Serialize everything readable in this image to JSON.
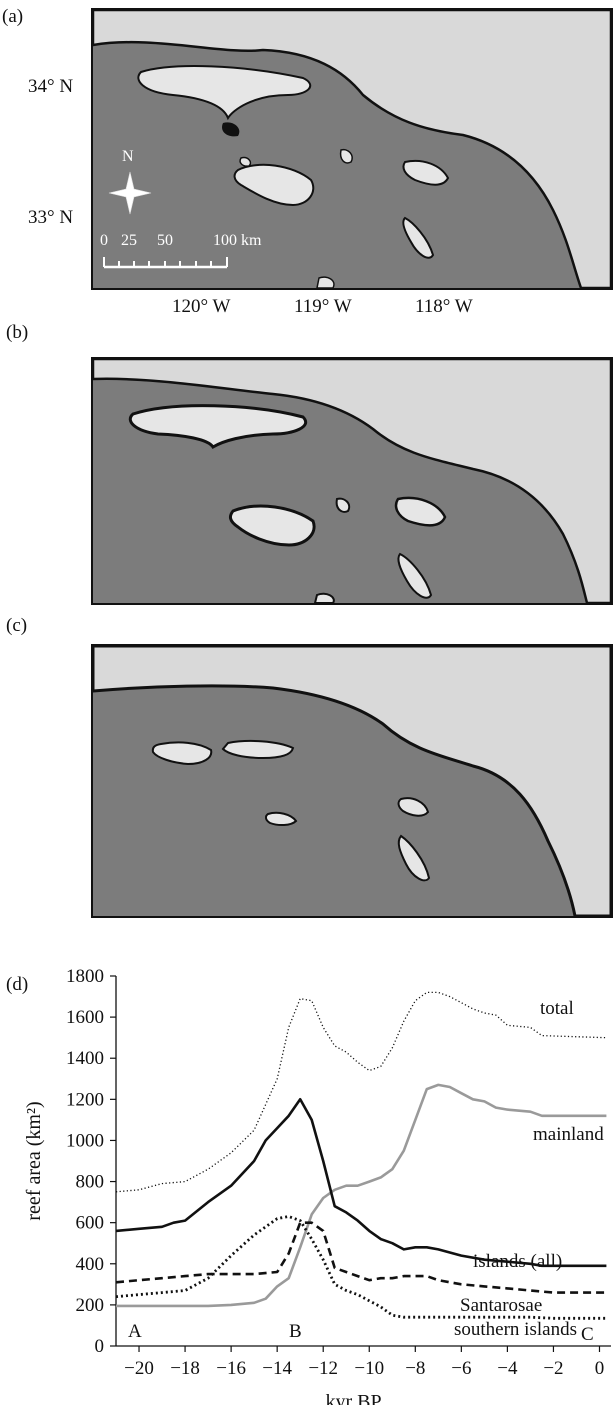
{
  "panels": {
    "a": {
      "label": "(a)"
    },
    "b": {
      "label": "(b)"
    },
    "c": {
      "label": "(c)"
    },
    "d": {
      "label": "(d)"
    }
  },
  "map_a": {
    "lat_labels": [
      "34° N",
      "33° N"
    ],
    "lon_labels": [
      "120° W",
      "119° W",
      "118° W"
    ],
    "north_label": "N",
    "scale_labels": [
      "0",
      "25",
      "50",
      "100 km"
    ]
  },
  "chart_data": {
    "type": "line",
    "xlabel": "kyr BP",
    "ylabel": "reef area (km²)",
    "xlim": [
      -21,
      0.5
    ],
    "ylim": [
      0,
      1800
    ],
    "xticks": [
      -20,
      -18,
      -16,
      -14,
      -12,
      -10,
      -8,
      -6,
      -4,
      -2,
      0
    ],
    "xtick_labels": [
      "−20",
      "−18",
      "−16",
      "−14",
      "−12",
      "−10",
      "−8",
      "−6",
      "−4",
      "−2",
      "0"
    ],
    "yticks": [
      0,
      200,
      400,
      600,
      800,
      1000,
      1200,
      1400,
      1600,
      1800
    ],
    "series": [
      {
        "name": "total",
        "style": "dotted",
        "color": "#111111",
        "x": [
          -21,
          -20,
          -19,
          -18,
          -17,
          -16,
          -15,
          -14,
          -13.5,
          -13,
          -12.5,
          -12,
          -11.5,
          -11,
          -10.5,
          -10,
          -9.5,
          -9,
          -8.5,
          -8,
          -7.5,
          -7,
          -6.5,
          -6,
          -5.5,
          -5,
          -4.5,
          -4,
          -3,
          -2.5,
          0.3
        ],
        "y": [
          750,
          760,
          790,
          800,
          860,
          940,
          1050,
          1300,
          1550,
          1690,
          1680,
          1550,
          1460,
          1430,
          1380,
          1340,
          1360,
          1450,
          1580,
          1680,
          1720,
          1720,
          1700,
          1670,
          1640,
          1620,
          1610,
          1560,
          1550,
          1510,
          1500
        ]
      },
      {
        "name": "mainland",
        "style": "solid",
        "color": "#9a9a9a",
        "x": [
          -21,
          -20,
          -19,
          -18,
          -17,
          -16,
          -15,
          -14.5,
          -14,
          -13.5,
          -13,
          -12.5,
          -12,
          -11.5,
          -11,
          -10.5,
          -10,
          -9.5,
          -9,
          -8.5,
          -8,
          -7.5,
          -7,
          -6.5,
          -6,
          -5.5,
          -5,
          -4.5,
          -4,
          -3,
          -2.5,
          0.3
        ],
        "y": [
          195,
          195,
          195,
          195,
          195,
          200,
          210,
          230,
          290,
          330,
          480,
          640,
          720,
          760,
          780,
          780,
          800,
          820,
          860,
          950,
          1100,
          1250,
          1270,
          1260,
          1230,
          1200,
          1190,
          1160,
          1150,
          1140,
          1120,
          1120
        ]
      },
      {
        "name": "islands (all)",
        "style": "solid",
        "color": "#111111",
        "x": [
          -21,
          -20,
          -19,
          -18.5,
          -18,
          -17,
          -16,
          -15,
          -14.5,
          -14,
          -13.5,
          -13,
          -12.5,
          -12,
          -11.5,
          -11,
          -10.5,
          -10,
          -9.5,
          -9,
          -8.5,
          -8,
          -7.5,
          -7,
          -6,
          -5,
          -4,
          -3,
          -2.5,
          0.3
        ],
        "y": [
          560,
          570,
          580,
          600,
          610,
          700,
          780,
          900,
          1000,
          1060,
          1120,
          1200,
          1100,
          900,
          680,
          650,
          610,
          560,
          520,
          500,
          470,
          480,
          480,
          470,
          440,
          420,
          410,
          400,
          390,
          390
        ]
      },
      {
        "name": "Santarosae",
        "style": "dashed",
        "color": "#111111",
        "x": [
          -21,
          -20,
          -19,
          -18,
          -17,
          -16,
          -15,
          -14,
          -13.5,
          -13,
          -12.5,
          -12,
          -11.5,
          -11,
          -10.5,
          -10,
          -9.5,
          -9,
          -8.5,
          -8,
          -7.5,
          -7,
          -6,
          -5,
          -4,
          -3,
          -2,
          0.3
        ],
        "y": [
          310,
          320,
          330,
          340,
          350,
          350,
          350,
          360,
          450,
          600,
          600,
          560,
          380,
          360,
          340,
          320,
          330,
          330,
          340,
          340,
          340,
          320,
          300,
          290,
          280,
          270,
          260,
          260
        ]
      },
      {
        "name": "southern islands",
        "style": "dotted-bold",
        "color": "#111111",
        "x": [
          -21,
          -20,
          -19,
          -18,
          -17,
          -16,
          -15,
          -14,
          -13.5,
          -13,
          -12.5,
          -12,
          -11.5,
          -11,
          -10.5,
          -10,
          -9.5,
          -9,
          -8.5,
          -8,
          -7,
          -6,
          -5,
          -4,
          -3,
          -2,
          0.3
        ],
        "y": [
          240,
          250,
          260,
          270,
          330,
          440,
          540,
          620,
          630,
          610,
          520,
          420,
          300,
          270,
          250,
          220,
          190,
          150,
          140,
          140,
          140,
          140,
          140,
          140,
          140,
          135,
          135
        ]
      }
    ],
    "series_labels": [
      "total",
      "mainland",
      "islands (all)",
      "Santarosae",
      "southern islands"
    ],
    "annotations": [
      "A",
      "B",
      "C"
    ]
  }
}
